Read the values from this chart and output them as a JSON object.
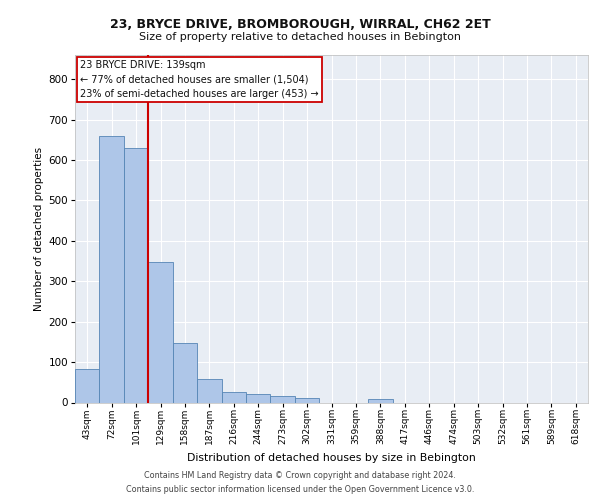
{
  "title_line1": "23, BRYCE DRIVE, BROMBOROUGH, WIRRAL, CH62 2ET",
  "title_line2": "Size of property relative to detached houses in Bebington",
  "xlabel": "Distribution of detached houses by size in Bebington",
  "ylabel": "Number of detached properties",
  "categories": [
    "43sqm",
    "72sqm",
    "101sqm",
    "129sqm",
    "158sqm",
    "187sqm",
    "216sqm",
    "244sqm",
    "273sqm",
    "302sqm",
    "331sqm",
    "359sqm",
    "388sqm",
    "417sqm",
    "446sqm",
    "474sqm",
    "503sqm",
    "532sqm",
    "561sqm",
    "589sqm",
    "618sqm"
  ],
  "values": [
    83,
    660,
    630,
    347,
    147,
    58,
    25,
    20,
    15,
    10,
    0,
    0,
    8,
    0,
    0,
    0,
    0,
    0,
    0,
    0,
    0
  ],
  "bar_color": "#aec6e8",
  "bar_edge_color": "#5585b5",
  "background_color": "#e8edf4",
  "grid_color": "#ffffff",
  "vline_color": "#cc0000",
  "vline_x": 2.5,
  "annotation_text": "23 BRYCE DRIVE: 139sqm\n← 77% of detached houses are smaller (1,504)\n23% of semi-detached houses are larger (453) →",
  "annotation_box_color": "#ffffff",
  "annotation_box_edge": "#cc0000",
  "ylim": [
    0,
    860
  ],
  "yticks": [
    0,
    100,
    200,
    300,
    400,
    500,
    600,
    700,
    800
  ],
  "footer_line1": "Contains HM Land Registry data © Crown copyright and database right 2024.",
  "footer_line2": "Contains public sector information licensed under the Open Government Licence v3.0."
}
